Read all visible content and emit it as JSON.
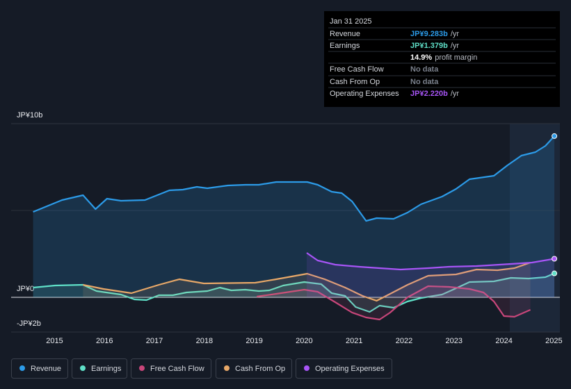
{
  "tooltip": {
    "title": "Jan 31 2025",
    "rows": [
      {
        "label": "Revenue",
        "value": "JP¥9.283b",
        "unit": "/yr",
        "color": "#2c9be8"
      },
      {
        "label": "Earnings",
        "value": "JP¥1.379b",
        "unit": "/yr",
        "color": "#5fe0c8"
      },
      {
        "label": "",
        "value": "14.9%",
        "unit": "profit margin",
        "color": "#ffffff"
      },
      {
        "label": "Free Cash Flow",
        "value": "No data",
        "unit": "",
        "color": "#7a808c"
      },
      {
        "label": "Cash From Op",
        "value": "No data",
        "unit": "",
        "color": "#7a808c"
      },
      {
        "label": "Operating Expenses",
        "value": "JP¥2.220b",
        "unit": "/yr",
        "color": "#a855f7"
      }
    ]
  },
  "chart_data": {
    "type": "line",
    "xlim": [
      2014.13,
      2025.12
    ],
    "xticks": [
      2015,
      2016,
      2017,
      2018,
      2019,
      2020,
      2021,
      2022,
      2023,
      2024,
      2025
    ],
    "ylim": [
      -2,
      10
    ],
    "yticks": [
      {
        "value": 10,
        "label": "JP¥10b"
      },
      {
        "value": 0,
        "label": "JP¥0"
      },
      {
        "value": -2,
        "label": "-JP¥2b"
      }
    ],
    "grid": true,
    "series": [
      {
        "name": "Revenue",
        "color": "#2c9be8",
        "x": [
          2014.57,
          2015.15,
          2015.57,
          2015.82,
          2016.05,
          2016.33,
          2016.81,
          2017.3,
          2017.57,
          2017.85,
          2018.06,
          2018.47,
          2018.82,
          2019.09,
          2019.44,
          2020.06,
          2020.27,
          2020.55,
          2020.75,
          2020.96,
          2021.24,
          2021.45,
          2021.79,
          2022.07,
          2022.34,
          2022.76,
          2023.04,
          2023.31,
          2023.8,
          2024.07,
          2024.35,
          2024.63,
          2024.83,
          2025.01
        ],
        "values": [
          4.92,
          5.6,
          5.88,
          5.08,
          5.68,
          5.56,
          5.6,
          6.16,
          6.2,
          6.36,
          6.28,
          6.44,
          6.48,
          6.48,
          6.64,
          6.64,
          6.48,
          6.08,
          6.0,
          5.52,
          4.4,
          4.56,
          4.52,
          4.88,
          5.36,
          5.8,
          6.24,
          6.8,
          7.0,
          7.6,
          8.16,
          8.36,
          8.72,
          9.283
        ]
      },
      {
        "name": "Earnings",
        "color": "#5fe0c8",
        "x": [
          2014.57,
          2015.01,
          2015.57,
          2015.84,
          2016.33,
          2016.6,
          2016.84,
          2017.09,
          2017.37,
          2017.64,
          2018.06,
          2018.31,
          2018.54,
          2018.82,
          2019.09,
          2019.3,
          2019.58,
          2020.0,
          2020.34,
          2020.55,
          2020.82,
          2021.03,
          2021.31,
          2021.51,
          2021.79,
          2022.07,
          2022.34,
          2022.76,
          2023.04,
          2023.31,
          2023.8,
          2024.14,
          2024.49,
          2024.83,
          2025.01
        ],
        "values": [
          0.56,
          0.68,
          0.72,
          0.36,
          0.16,
          -0.12,
          -0.16,
          0.12,
          0.12,
          0.28,
          0.36,
          0.56,
          0.4,
          0.44,
          0.36,
          0.4,
          0.68,
          0.88,
          0.76,
          0.24,
          0.08,
          -0.56,
          -0.84,
          -0.48,
          -0.6,
          -0.24,
          -0.04,
          0.16,
          0.52,
          0.88,
          0.92,
          1.12,
          1.08,
          1.16,
          1.379
        ]
      },
      {
        "name": "Free Cash Flow",
        "color": "#c8467a",
        "x": [
          2019.05,
          2019.44,
          2020.0,
          2020.27,
          2020.62,
          2020.96,
          2021.24,
          2021.51,
          2021.72,
          2022.07,
          2022.48,
          2022.9,
          2023.31,
          2023.59,
          2023.8,
          2024.0,
          2024.21,
          2024.53
        ],
        "values": [
          0.04,
          0.2,
          0.44,
          0.32,
          -0.28,
          -0.88,
          -1.16,
          -1.28,
          -0.88,
          0,
          0.64,
          0.6,
          0.48,
          0.28,
          -0.24,
          -1.08,
          -1.12,
          -0.72
        ]
      },
      {
        "name": "Cash From Op",
        "color": "#e8a868",
        "x": [
          2015.57,
          2015.98,
          2016.54,
          2017.09,
          2017.5,
          2017.99,
          2019.02,
          2019.44,
          2020.06,
          2020.41,
          2020.82,
          2021.17,
          2021.45,
          2021.72,
          2022.07,
          2022.48,
          2023.04,
          2023.45,
          2023.87,
          2024.21,
          2024.53
        ],
        "values": [
          0.72,
          0.48,
          0.24,
          0.72,
          1.04,
          0.8,
          0.84,
          1.04,
          1.36,
          1.04,
          0.56,
          0.08,
          -0.2,
          0.2,
          0.72,
          1.24,
          1.32,
          1.6,
          1.56,
          1.68,
          2.0
        ]
      },
      {
        "name": "Operating Expenses",
        "color": "#a855f7",
        "x": [
          2020.05,
          2020.27,
          2020.62,
          2021.1,
          2021.51,
          2021.93,
          2022.48,
          2022.9,
          2023.45,
          2024.14,
          2024.56,
          2025.01
        ],
        "values": [
          2.56,
          2.12,
          1.88,
          1.76,
          1.68,
          1.6,
          1.68,
          1.76,
          1.8,
          1.92,
          2.0,
          2.22
        ]
      }
    ]
  }
}
